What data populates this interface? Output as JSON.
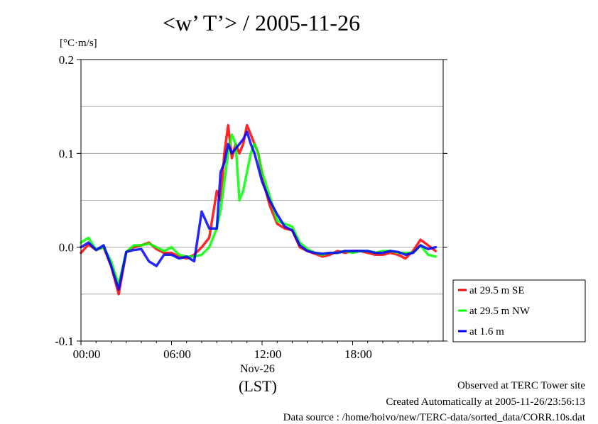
{
  "chart_data": {
    "type": "line",
    "title": "<w’ T’> / 2005-11-26",
    "ylabel_unit": "[°C·m/s]",
    "ylim": [
      -0.1,
      0.2
    ],
    "y_ticks": [
      "-0.1",
      "0.0",
      "0.1",
      "0.2"
    ],
    "y_gridlines": [
      -0.05,
      0.0,
      0.05,
      0.1,
      0.15
    ],
    "xlim_hours": [
      0,
      24
    ],
    "x_ticks": [
      "00:00",
      "06:00",
      "12:00",
      "18:00"
    ],
    "x_date_label": "Nov-26",
    "x_axis_label": "(LST)",
    "legend_position": "right",
    "x_hours": [
      0,
      0.5,
      1,
      1.5,
      2,
      2.5,
      3,
      3.5,
      4,
      4.5,
      5,
      5.5,
      6,
      6.5,
      7,
      7.5,
      8,
      8.5,
      9,
      9.25,
      9.5,
      9.75,
      10,
      10.25,
      10.5,
      10.75,
      11,
      11.25,
      11.5,
      11.75,
      12,
      12.5,
      13,
      13.5,
      14,
      14.5,
      15,
      15.5,
      16,
      16.5,
      17,
      17.5,
      18,
      18.5,
      19,
      19.5,
      20,
      20.5,
      21,
      21.5,
      22,
      22.5,
      23,
      23.5
    ],
    "series": [
      {
        "name": "at 29.5 m SE",
        "color": "#ff0000",
        "values": [
          -0.006,
          0.003,
          -0.003,
          0.0,
          -0.02,
          -0.05,
          -0.005,
          0.0,
          0.002,
          0.005,
          -0.002,
          -0.006,
          -0.006,
          -0.01,
          -0.012,
          -0.008,
          0.0,
          0.01,
          0.06,
          0.05,
          0.1,
          0.13,
          0.095,
          0.11,
          0.1,
          0.11,
          0.13,
          0.12,
          0.11,
          0.1,
          0.075,
          0.045,
          0.025,
          0.02,
          0.018,
          0.0,
          -0.004,
          -0.007,
          -0.01,
          -0.008,
          -0.004,
          -0.006,
          -0.004,
          -0.004,
          -0.006,
          -0.008,
          -0.008,
          -0.006,
          -0.008,
          -0.012,
          -0.004,
          0.008,
          0.002,
          -0.004
        ]
      },
      {
        "name": "at 29.5 m NW",
        "color": "#00ff00",
        "values": [
          0.005,
          0.01,
          -0.003,
          0.0,
          -0.015,
          -0.04,
          -0.005,
          0.002,
          0.002,
          0.004,
          0.0,
          -0.004,
          0.0,
          -0.008,
          -0.01,
          -0.01,
          -0.008,
          0.0,
          0.02,
          0.04,
          0.07,
          0.1,
          0.12,
          0.11,
          0.05,
          0.06,
          0.08,
          0.1,
          0.11,
          0.1,
          0.08,
          0.055,
          0.028,
          0.025,
          0.022,
          0.005,
          -0.002,
          -0.006,
          -0.008,
          -0.006,
          -0.006,
          -0.004,
          -0.006,
          -0.004,
          -0.004,
          -0.006,
          -0.004,
          -0.004,
          -0.006,
          -0.006,
          -0.006,
          0.002,
          -0.008,
          -0.01
        ]
      },
      {
        "name": "at 1.6 m",
        "color": "#0000ff",
        "values": [
          0.0,
          0.005,
          -0.003,
          0.002,
          -0.02,
          -0.045,
          -0.005,
          -0.003,
          -0.002,
          -0.015,
          -0.02,
          -0.008,
          -0.008,
          -0.012,
          -0.01,
          -0.015,
          0.038,
          0.02,
          0.02,
          0.08,
          0.09,
          0.11,
          0.1,
          0.105,
          0.11,
          0.115,
          0.123,
          0.11,
          0.1,
          0.085,
          0.07,
          0.05,
          0.035,
          0.022,
          0.018,
          0.002,
          -0.004,
          -0.006,
          -0.007,
          -0.006,
          -0.006,
          -0.004,
          -0.004,
          -0.004,
          -0.004,
          -0.006,
          -0.006,
          -0.004,
          -0.005,
          -0.008,
          -0.006,
          0.002,
          -0.002,
          0.0
        ]
      }
    ]
  },
  "footer": {
    "site": "Observed at TERC Tower site",
    "created": "Created Automatically at 2005-11-26/23:56:13",
    "source": "Data source : /home/hoivo/new/TERC-data/sorted_data/CORR.10s.dat"
  }
}
